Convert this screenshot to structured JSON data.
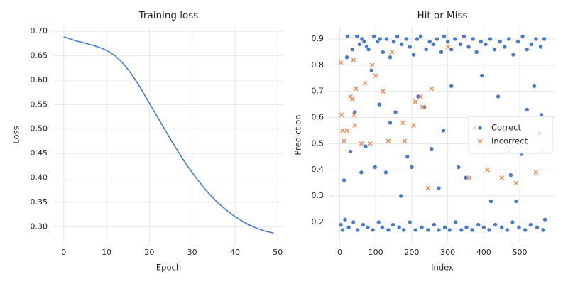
{
  "chart_data": [
    {
      "type": "line",
      "title": "Training loss",
      "xlabel": "Epoch",
      "ylabel": "Loss",
      "x": [
        0,
        1,
        2,
        3,
        4,
        5,
        6,
        7,
        8,
        9,
        10,
        11,
        12,
        13,
        14,
        15,
        16,
        17,
        18,
        19,
        20,
        21,
        22,
        23,
        24,
        25,
        26,
        27,
        28,
        29,
        30,
        31,
        32,
        33,
        34,
        35,
        36,
        37,
        38,
        39,
        40,
        41,
        42,
        43,
        44,
        45,
        46,
        47,
        48,
        49
      ],
      "series": [
        {
          "name": "loss",
          "color": "#4878d0",
          "values": [
            0.689,
            0.686,
            0.683,
            0.68,
            0.678,
            0.676,
            0.673,
            0.671,
            0.668,
            0.665,
            0.661,
            0.656,
            0.65,
            0.642,
            0.633,
            0.622,
            0.61,
            0.597,
            0.583,
            0.568,
            0.553,
            0.538,
            0.523,
            0.508,
            0.493,
            0.478,
            0.464,
            0.45,
            0.436,
            0.423,
            0.411,
            0.399,
            0.388,
            0.377,
            0.367,
            0.358,
            0.349,
            0.341,
            0.334,
            0.327,
            0.321,
            0.315,
            0.31,
            0.305,
            0.301,
            0.297,
            0.294,
            0.291,
            0.289,
            0.287
          ]
        }
      ],
      "xlim": [
        -2.45,
        51.45
      ],
      "xticks": [
        0,
        10,
        20,
        30,
        40,
        50
      ],
      "ylim": [
        0.267,
        0.709
      ],
      "yticks": [
        {
          "value": 0.3,
          "label": "0.30"
        },
        {
          "value": 0.35,
          "label": "0.35"
        },
        {
          "value": 0.4,
          "label": "0.40"
        },
        {
          "value": 0.45,
          "label": "0.45"
        },
        {
          "value": 0.5,
          "label": "0.50"
        },
        {
          "value": 0.55,
          "label": "0.55"
        },
        {
          "value": 0.6,
          "label": "0.60"
        },
        {
          "value": 0.65,
          "label": "0.65"
        },
        {
          "value": 0.7,
          "label": "0.70"
        }
      ],
      "grid": true
    },
    {
      "type": "scatter",
      "title": "Hit or Miss",
      "xlabel": "Index",
      "ylabel": "Prediction",
      "legend": "center right",
      "series": [
        {
          "name": "Correct",
          "color": "#4878d0",
          "marker": "o",
          "x": [
            20,
            22,
            35,
            48,
            55,
            62,
            68,
            75,
            80,
            88,
            95,
            105,
            112,
            120,
            130,
            140,
            150,
            160,
            172,
            185,
            195,
            205,
            215,
            225,
            240,
            250,
            260,
            270,
            282,
            290,
            300,
            310,
            320,
            335,
            345,
            358,
            370,
            380,
            392,
            405,
            418,
            430,
            445,
            458,
            470,
            482,
            495,
            508,
            520,
            532,
            545,
            558,
            568,
            3,
            8,
            15,
            25,
            38,
            50,
            65,
            78,
            92,
            108,
            118,
            135,
            148,
            165,
            178,
            195,
            210,
            228,
            245,
            262,
            275,
            292,
            305,
            322,
            338,
            352,
            368,
            385,
            400,
            415,
            432,
            450,
            465,
            480,
            498,
            515,
            530,
            548,
            565,
            570,
            12,
            30,
            42,
            60,
            72,
            98,
            110,
            128,
            140,
            155,
            170,
            188,
            200,
            218,
            235,
            255,
            275,
            288,
            310,
            330,
            350,
            375,
            395,
            420,
            440,
            460,
            475,
            490,
            505,
            520,
            540,
            555,
            560
          ],
          "values": [
            0.83,
            0.91,
            0.86,
            0.91,
            0.88,
            0.9,
            0.89,
            0.87,
            0.86,
            0.78,
            0.91,
            0.89,
            0.9,
            0.85,
            0.9,
            0.83,
            0.89,
            0.91,
            0.88,
            0.9,
            0.87,
            0.84,
            0.9,
            0.91,
            0.86,
            0.89,
            0.88,
            0.9,
            0.85,
            0.91,
            0.89,
            0.86,
            0.9,
            0.88,
            0.91,
            0.87,
            0.9,
            0.85,
            0.89,
            0.88,
            0.9,
            0.86,
            0.89,
            0.87,
            0.9,
            0.84,
            0.89,
            0.91,
            0.86,
            0.88,
            0.9,
            0.87,
            0.9,
            0.19,
            0.17,
            0.21,
            0.18,
            0.2,
            0.17,
            0.19,
            0.18,
            0.17,
            0.2,
            0.18,
            0.17,
            0.19,
            0.18,
            0.17,
            0.2,
            0.17,
            0.18,
            0.17,
            0.19,
            0.17,
            0.18,
            0.17,
            0.2,
            0.17,
            0.18,
            0.17,
            0.19,
            0.18,
            0.17,
            0.19,
            0.18,
            0.17,
            0.2,
            0.18,
            0.17,
            0.19,
            0.18,
            0.17,
            0.21,
            0.36,
            0.47,
            0.62,
            0.39,
            0.49,
            0.41,
            0.65,
            0.39,
            0.58,
            0.62,
            0.3,
            0.45,
            0.41,
            0.68,
            0.64,
            0.48,
            0.33,
            0.55,
            0.72,
            0.41,
            0.37,
            0.56,
            0.76,
            0.28,
            0.68,
            0.55,
            0.38,
            0.28,
            0.46,
            0.63,
            0.72,
            0.54,
            0.61
          ]
        },
        {
          "name": "Incorrect",
          "color": "#ee854a",
          "marker": "x",
          "x": [
            5,
            8,
            12,
            20,
            30,
            35,
            40,
            42,
            45,
            60,
            70,
            85,
            90,
            100,
            120,
            135,
            145,
            175,
            180,
            205,
            210,
            225,
            230,
            245,
            255,
            300,
            360,
            410,
            450,
            470,
            490,
            545,
            560,
            3,
            38
          ],
          "values": [
            0.61,
            0.55,
            0.51,
            0.55,
            0.68,
            0.67,
            0.61,
            0.57,
            0.71,
            0.5,
            0.73,
            0.5,
            0.8,
            0.76,
            0.7,
            0.51,
            0.85,
            0.58,
            0.51,
            0.57,
            0.66,
            0.68,
            0.64,
            0.33,
            0.71,
            0.87,
            0.37,
            0.4,
            0.37,
            0.47,
            0.35,
            0.39,
            0.47,
            0.81,
            0.82
          ]
        }
      ],
      "xlim": [
        -28.5,
        598.5
      ],
      "xticks": [
        0,
        100,
        200,
        300,
        400,
        500
      ],
      "ylim": [
        0.121,
        0.946
      ],
      "yticks": [
        0.2,
        0.3,
        0.4,
        0.5,
        0.6,
        0.7,
        0.8,
        0.9
      ],
      "grid": true
    }
  ]
}
